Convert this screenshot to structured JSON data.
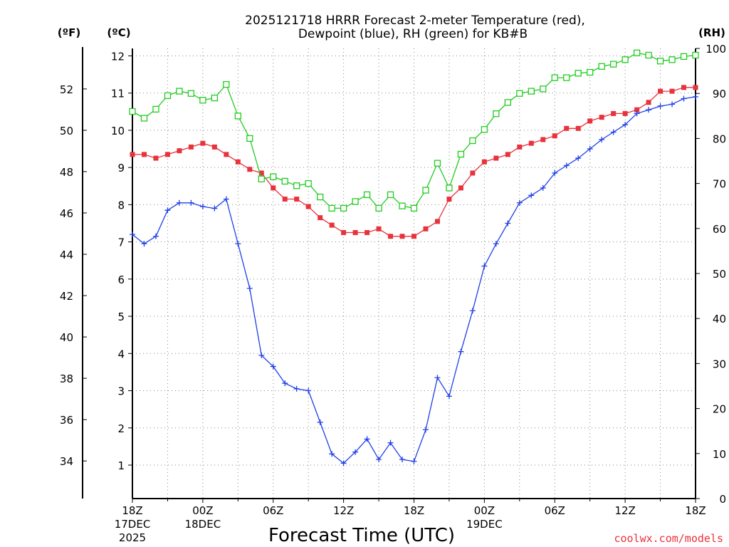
{
  "chart_data": {
    "type": "line",
    "title_line1": "2025121718 HRRR Forecast 2-meter Temperature (red),",
    "title_line2": "Dewpoint (blue), RH (green) for KB#B",
    "xlabel": "Forecast Time (UTC)",
    "unit_left_f": "(ºF)",
    "unit_left_c": "(ºC)",
    "unit_right": "(RH)",
    "credit": "coolwx.com/models",
    "x": [
      0,
      1,
      2,
      3,
      4,
      5,
      6,
      7,
      8,
      9,
      10,
      11,
      12,
      13,
      14,
      15,
      16,
      17,
      18,
      19,
      20,
      21,
      22,
      23,
      24,
      25,
      26,
      27,
      28,
      29,
      30,
      31,
      32,
      33,
      34,
      35,
      36,
      37,
      38,
      39,
      40,
      41,
      42,
      43,
      44,
      45,
      46,
      47,
      48
    ],
    "x_range": [
      0,
      48
    ],
    "c_range": [
      0.1,
      12.2
    ],
    "f_range": [
      32.18,
      53.96
    ],
    "rh_range": [
      0,
      100
    ],
    "c_ticks": [
      1,
      2,
      3,
      4,
      5,
      6,
      7,
      8,
      9,
      10,
      11,
      12
    ],
    "f_ticks": [
      34,
      36,
      38,
      40,
      42,
      44,
      46,
      48,
      50,
      52
    ],
    "rh_ticks": [
      0,
      10,
      20,
      30,
      40,
      50,
      60,
      70,
      80,
      90,
      100
    ],
    "x_ticks": [
      {
        "x": 0,
        "lines": [
          "18Z",
          "17DEC",
          "2025"
        ]
      },
      {
        "x": 6,
        "lines": [
          "00Z",
          "18DEC"
        ]
      },
      {
        "x": 12,
        "lines": [
          "06Z"
        ]
      },
      {
        "x": 18,
        "lines": [
          "12Z"
        ]
      },
      {
        "x": 24,
        "lines": [
          "18Z"
        ]
      },
      {
        "x": 30,
        "lines": [
          "00Z",
          "19DEC"
        ]
      },
      {
        "x": 36,
        "lines": [
          "06Z"
        ]
      },
      {
        "x": 42,
        "lines": [
          "12Z"
        ]
      },
      {
        "x": 48,
        "lines": [
          "18Z"
        ]
      }
    ],
    "series": [
      {
        "name": "Temperature",
        "unit": "C",
        "color": "#e8323c",
        "marker": "filled-square",
        "values": [
          9.35,
          9.35,
          9.25,
          9.35,
          9.45,
          9.55,
          9.65,
          9.55,
          9.35,
          9.15,
          8.95,
          8.85,
          8.45,
          8.15,
          8.15,
          7.95,
          7.65,
          7.45,
          7.25,
          7.25,
          7.25,
          7.35,
          7.15,
          7.15,
          7.15,
          7.35,
          7.55,
          8.15,
          8.45,
          8.85,
          9.15,
          9.25,
          9.35,
          9.55,
          9.65,
          9.75,
          9.85,
          10.05,
          10.05,
          10.25,
          10.35,
          10.45,
          10.45,
          10.55,
          10.75,
          11.05,
          11.05,
          11.15,
          11.15
        ]
      },
      {
        "name": "Dewpoint",
        "unit": "C",
        "color": "#2040e8",
        "marker": "plus",
        "values": [
          7.2,
          6.95,
          7.15,
          7.85,
          8.05,
          8.05,
          7.95,
          7.9,
          8.15,
          6.95,
          5.75,
          3.95,
          3.65,
          3.2,
          3.05,
          3.0,
          2.15,
          1.3,
          1.05,
          1.35,
          1.7,
          1.15,
          1.6,
          1.15,
          1.1,
          1.95,
          3.35,
          2.85,
          4.05,
          5.15,
          6.35,
          6.95,
          7.5,
          8.05,
          8.25,
          8.45,
          8.85,
          9.05,
          9.25,
          9.5,
          9.75,
          9.95,
          10.15,
          10.45,
          10.55,
          10.65,
          10.7,
          10.85,
          10.9
        ]
      },
      {
        "name": "RH",
        "unit": "%",
        "color": "#22cc22",
        "marker": "open-square",
        "values": [
          86,
          84.5,
          86.5,
          89.5,
          90.5,
          90,
          88.5,
          89,
          92,
          85,
          80,
          71,
          71.5,
          70.5,
          69.5,
          70,
          67,
          64.5,
          64.5,
          66,
          67.5,
          64.5,
          67.5,
          65,
          64.5,
          68.5,
          74.5,
          69,
          76.5,
          79.5,
          82,
          85.5,
          88,
          90,
          90.5,
          91,
          93.5,
          93.5,
          94.5,
          94.7,
          96,
          96.5,
          97.5,
          99,
          98.5,
          97.2,
          97.5,
          98.2,
          98.5
        ]
      }
    ]
  }
}
